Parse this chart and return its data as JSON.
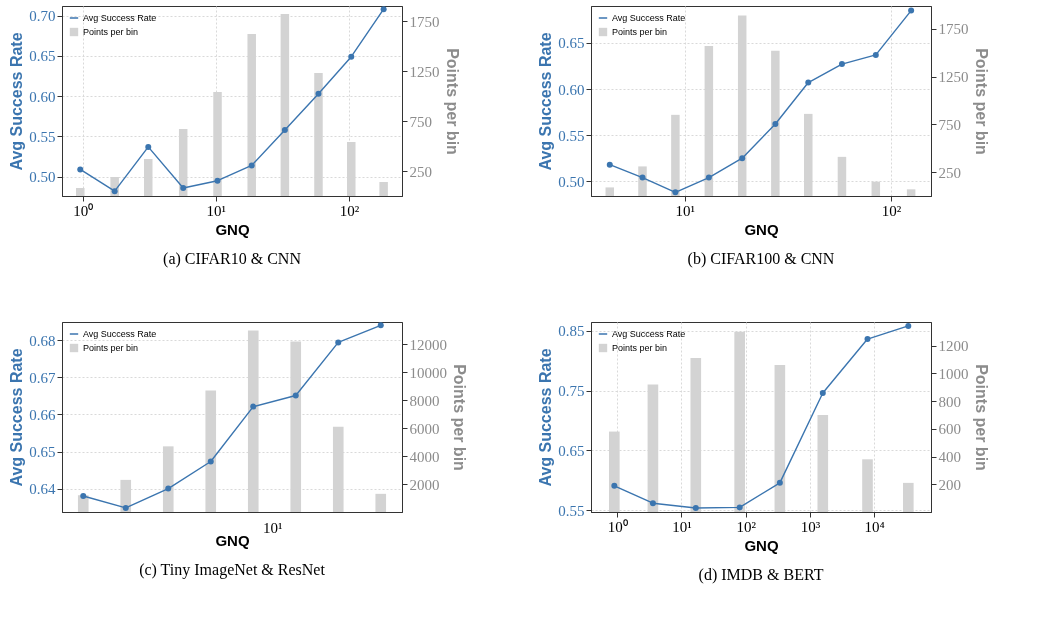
{
  "chart_data": [
    {
      "type": "line",
      "title": "(a) CIFAR10 & CNN",
      "xlabel": "GNQ",
      "ylabel": "Avg Success Rate",
      "y2label": "Points per bin",
      "log": "x",
      "grid": true,
      "legend": "top left",
      "marker": "circle",
      "x": [
        0.96,
        1.74,
        3.11,
        5.69,
        10.3,
        18.6,
        33,
        59,
        104,
        182
      ],
      "xlim": [
        0.7,
        250
      ],
      "xticks": [
        {
          "value": 1,
          "label": "10⁰"
        },
        {
          "value": 10,
          "label": "10¹"
        },
        {
          "value": 100,
          "label": "10²"
        }
      ],
      "ylim": [
        0.476,
        0.712
      ],
      "yticks": [
        {
          "value": 0.5,
          "label": "0.50"
        },
        0.55,
        {
          "value": 0.6,
          "label": "0.60"
        },
        0.65,
        {
          "value": 0.7,
          "label": "0.70"
        }
      ],
      "y2lim": [
        0,
        1900
      ],
      "y2ticks": [
        250,
        750,
        1250,
        1750
      ],
      "series": [
        {
          "name": "Avg Success Rate",
          "color": "#3b75af",
          "values": [
            0.509,
            0.482,
            0.537,
            0.486,
            0.495,
            0.514,
            0.558,
            0.603,
            0.649,
            0.708
          ]
        },
        {
          "name": "Points per bin",
          "type": "bar",
          "axis": "y2",
          "color": "#d3d3d3",
          "values": [
            80,
            190,
            370,
            670,
            1040,
            1620,
            1820,
            1230,
            540,
            140
          ]
        }
      ]
    },
    {
      "type": "line",
      "title": "(b) CIFAR100 & CNN",
      "xlabel": "GNQ",
      "ylabel": "Avg Success Rate",
      "y2label": "Points per bin",
      "log": "x",
      "grid": true,
      "legend": "top left",
      "marker": "circle",
      "x": [
        4.34,
        6.25,
        9.02,
        13.1,
        19.0,
        27.5,
        39.7,
        57.8,
        84.3,
        125
      ],
      "xlim": [
        3.52,
        156
      ],
      "xticks": [
        {
          "value": 10,
          "label": "10¹"
        },
        {
          "value": 100,
          "label": "10²"
        }
      ],
      "ylim": [
        0.484,
        0.69
      ],
      "yticks": [
        {
          "value": 0.5,
          "label": "0.50"
        },
        0.55,
        {
          "value": 0.6,
          "label": "0.60"
        },
        0.65
      ],
      "y2lim": [
        0,
        1990
      ],
      "y2ticks": [
        250,
        750,
        1250,
        1750
      ],
      "series": [
        {
          "name": "Avg Success Rate",
          "color": "#3b75af",
          "values": [
            0.518,
            0.504,
            0.488,
            0.504,
            0.525,
            0.562,
            0.607,
            0.627,
            0.637,
            0.685
          ]
        },
        {
          "name": "Points per bin",
          "type": "bar",
          "axis": "y2",
          "color": "#d3d3d3",
          "values": [
            90,
            310,
            850,
            1570,
            1890,
            1520,
            860,
            410,
            150,
            70
          ]
        }
      ]
    },
    {
      "type": "line",
      "title": "(c) Tiny ImageNet & ResNet",
      "xlabel": "GNQ",
      "ylabel": "Avg Success Rate",
      "y2label": "Points per bin",
      "grid": "y",
      "legend": "top left",
      "marker": "circle",
      "categories": [
        null,
        null,
        null,
        null,
        null,
        null,
        null,
        null
      ],
      "annotations": [
        "10¹"
      ],
      "ylim": [
        0.6337,
        0.6849
      ],
      "yticks": [
        0.64,
        0.65,
        0.66,
        0.67,
        0.68
      ],
      "y2lim": [
        0,
        13600
      ],
      "y2ticks": [
        2000,
        4000,
        6000,
        8000,
        10000,
        12000
      ],
      "series": [
        {
          "name": "Avg Success Rate",
          "color": "#3b75af",
          "values": [
            0.638,
            0.6348,
            0.64,
            0.6473,
            0.6621,
            0.6651,
            0.6794,
            0.684
          ]
        },
        {
          "name": "Points per bin",
          "type": "bar",
          "axis": "y2",
          "color": "#d3d3d3",
          "values": [
            1200,
            2300,
            4700,
            8700,
            13000,
            12200,
            6100,
            1300
          ]
        }
      ]
    },
    {
      "type": "line",
      "title": "(d) IMDB & BERT",
      "xlabel": "GNQ",
      "ylabel": "Avg Success Rate",
      "y2label": "Points per bin",
      "log": "x",
      "grid": true,
      "legend": "top left",
      "marker": "circle",
      "x": [
        0.9,
        3.59,
        16.7,
        80.5,
        340,
        1585,
        7870,
        34000
      ],
      "xlim": [
        0.39,
        76700
      ],
      "xticks": [
        {
          "value": 1,
          "label": "10⁰"
        },
        {
          "value": 10,
          "label": "10¹"
        },
        {
          "value": 100,
          "label": "10²"
        },
        {
          "value": 1000,
          "label": "10³"
        },
        {
          "value": 10000,
          "label": "10⁴"
        }
      ],
      "ylim": [
        0.5473,
        0.8645
      ],
      "yticks": [
        0.55,
        0.65,
        0.75,
        0.85
      ],
      "y2lim": [
        0,
        1370
      ],
      "y2ticks": [
        200,
        400,
        600,
        800,
        1000,
        1200
      ],
      "series": [
        {
          "name": "Avg Success Rate",
          "color": "#3b75af",
          "values": [
            0.591,
            0.562,
            0.554,
            0.555,
            0.596,
            0.746,
            0.836,
            0.858
          ]
        },
        {
          "name": "Points per bin",
          "type": "bar",
          "axis": "y2",
          "color": "#d3d3d3",
          "values": [
            580,
            920,
            1110,
            1300,
            1060,
            700,
            380,
            210
          ]
        }
      ]
    }
  ]
}
